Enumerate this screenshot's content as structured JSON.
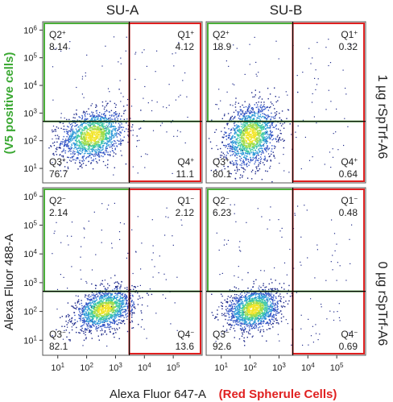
{
  "chart_data": [
    {
      "type": "scatter",
      "panel": "top-left",
      "column_label": "SU-A",
      "row_label": "1 µg rSpTrf-A6",
      "xscale": "log",
      "yscale": "log",
      "xlim": [
        3,
        1000000
      ],
      "ylim": [
        3,
        2000000
      ],
      "gates": {
        "x": 3000,
        "y": 500
      },
      "quadrants": [
        {
          "name": "Q2",
          "sign": "+",
          "value": "8.14"
        },
        {
          "name": "Q1",
          "sign": "+",
          "value": "4.12"
        },
        {
          "name": "Q3",
          "sign": "+",
          "value": "76.7"
        },
        {
          "name": "Q4",
          "sign": "+",
          "value": "11.1"
        }
      ],
      "cloud": {
        "cx": 2.2,
        "cy": 2.2,
        "sx": 0.55,
        "sy": 0.45,
        "rho": 0.25
      }
    },
    {
      "type": "scatter",
      "panel": "top-right",
      "column_label": "SU-B",
      "row_label": "1 µg rSpTrf-A6",
      "xscale": "log",
      "yscale": "log",
      "xlim": [
        3,
        1000000
      ],
      "ylim": [
        3,
        2000000
      ],
      "gates": {
        "x": 3000,
        "y": 500
      },
      "quadrants": [
        {
          "name": "Q2",
          "sign": "+",
          "value": "18.9"
        },
        {
          "name": "Q1",
          "sign": "+",
          "value": "0.32"
        },
        {
          "name": "Q3",
          "sign": "+",
          "value": "80.1"
        },
        {
          "name": "Q4",
          "sign": "+",
          "value": "0.64"
        }
      ],
      "cloud": {
        "cx": 2.0,
        "cy": 2.2,
        "sx": 0.45,
        "sy": 0.55,
        "rho": 0.2
      }
    },
    {
      "type": "scatter",
      "panel": "bottom-left",
      "column_label": "SU-A",
      "row_label": "0 µg rSpTrf-A6",
      "xscale": "log",
      "yscale": "log",
      "xlim": [
        3,
        1000000
      ],
      "ylim": [
        3,
        2000000
      ],
      "gates": {
        "x": 3000,
        "y": 500
      },
      "quadrants": [
        {
          "name": "Q2",
          "sign": "−",
          "value": "2.14"
        },
        {
          "name": "Q1",
          "sign": "−",
          "value": "2.12"
        },
        {
          "name": "Q3",
          "sign": "−",
          "value": "82.1"
        },
        {
          "name": "Q4",
          "sign": "−",
          "value": "13.6"
        }
      ],
      "cloud": {
        "cx": 2.6,
        "cy": 2.1,
        "sx": 0.5,
        "sy": 0.35,
        "rho": 0.35
      }
    },
    {
      "type": "scatter",
      "panel": "bottom-right",
      "column_label": "SU-B",
      "row_label": "0 µg rSpTrf-A6",
      "xscale": "log",
      "yscale": "log",
      "xlim": [
        3,
        1000000
      ],
      "ylim": [
        3,
        2000000
      ],
      "gates": {
        "x": 3000,
        "y": 500
      },
      "quadrants": [
        {
          "name": "Q2",
          "sign": "−",
          "value": "6.23"
        },
        {
          "name": "Q1",
          "sign": "−",
          "value": "0.48"
        },
        {
          "name": "Q3",
          "sign": "−",
          "value": "92.6"
        },
        {
          "name": "Q4",
          "sign": "−",
          "value": "0.69"
        }
      ],
      "cloud": {
        "cx": 2.1,
        "cy": 2.1,
        "sx": 0.45,
        "sy": 0.35,
        "rho": 0.2
      }
    }
  ],
  "labels": {
    "column_a": "SU-A",
    "column_b": "SU-B",
    "row_top": "1 µg rSpTrf-A6",
    "row_bottom": "0 µg rSpTrf-A6",
    "ylabel": "Alexa Fluor 488-A",
    "ylabel_gate": "(V5 positive cells)",
    "xlabel": "Alexa Fluor 647-A",
    "xlabel_gate": "(Red Spherule Cells)"
  },
  "ticks": {
    "x": [
      {
        "base": "10",
        "exp": "1",
        "v": 10
      },
      {
        "base": "10",
        "exp": "2",
        "v": 100
      },
      {
        "base": "10",
        "exp": "3",
        "v": 1000
      },
      {
        "base": "10",
        "exp": "4",
        "v": 10000
      },
      {
        "base": "10",
        "exp": "5",
        "v": 100000
      }
    ],
    "y": [
      {
        "base": "10",
        "exp": "1",
        "v": 10
      },
      {
        "base": "10",
        "exp": "2",
        "v": 100
      },
      {
        "base": "10",
        "exp": "3",
        "v": 1000
      },
      {
        "base": "10",
        "exp": "4",
        "v": 10000
      },
      {
        "base": "10",
        "exp": "5",
        "v": 100000
      },
      {
        "base": "10",
        "exp": "6",
        "v": 1000000
      }
    ]
  },
  "colors": {
    "green_gate": "#4caf3a",
    "red_gate": "#e02020",
    "quadrant_line": "#000000",
    "ylabel_gate": "#3aa832",
    "xlabel_gate": "#e02020",
    "density": [
      "#1f2a8a",
      "#2f52c4",
      "#2e9ad8",
      "#3fc9a5",
      "#9fdc4c",
      "#f2e52a"
    ]
  }
}
